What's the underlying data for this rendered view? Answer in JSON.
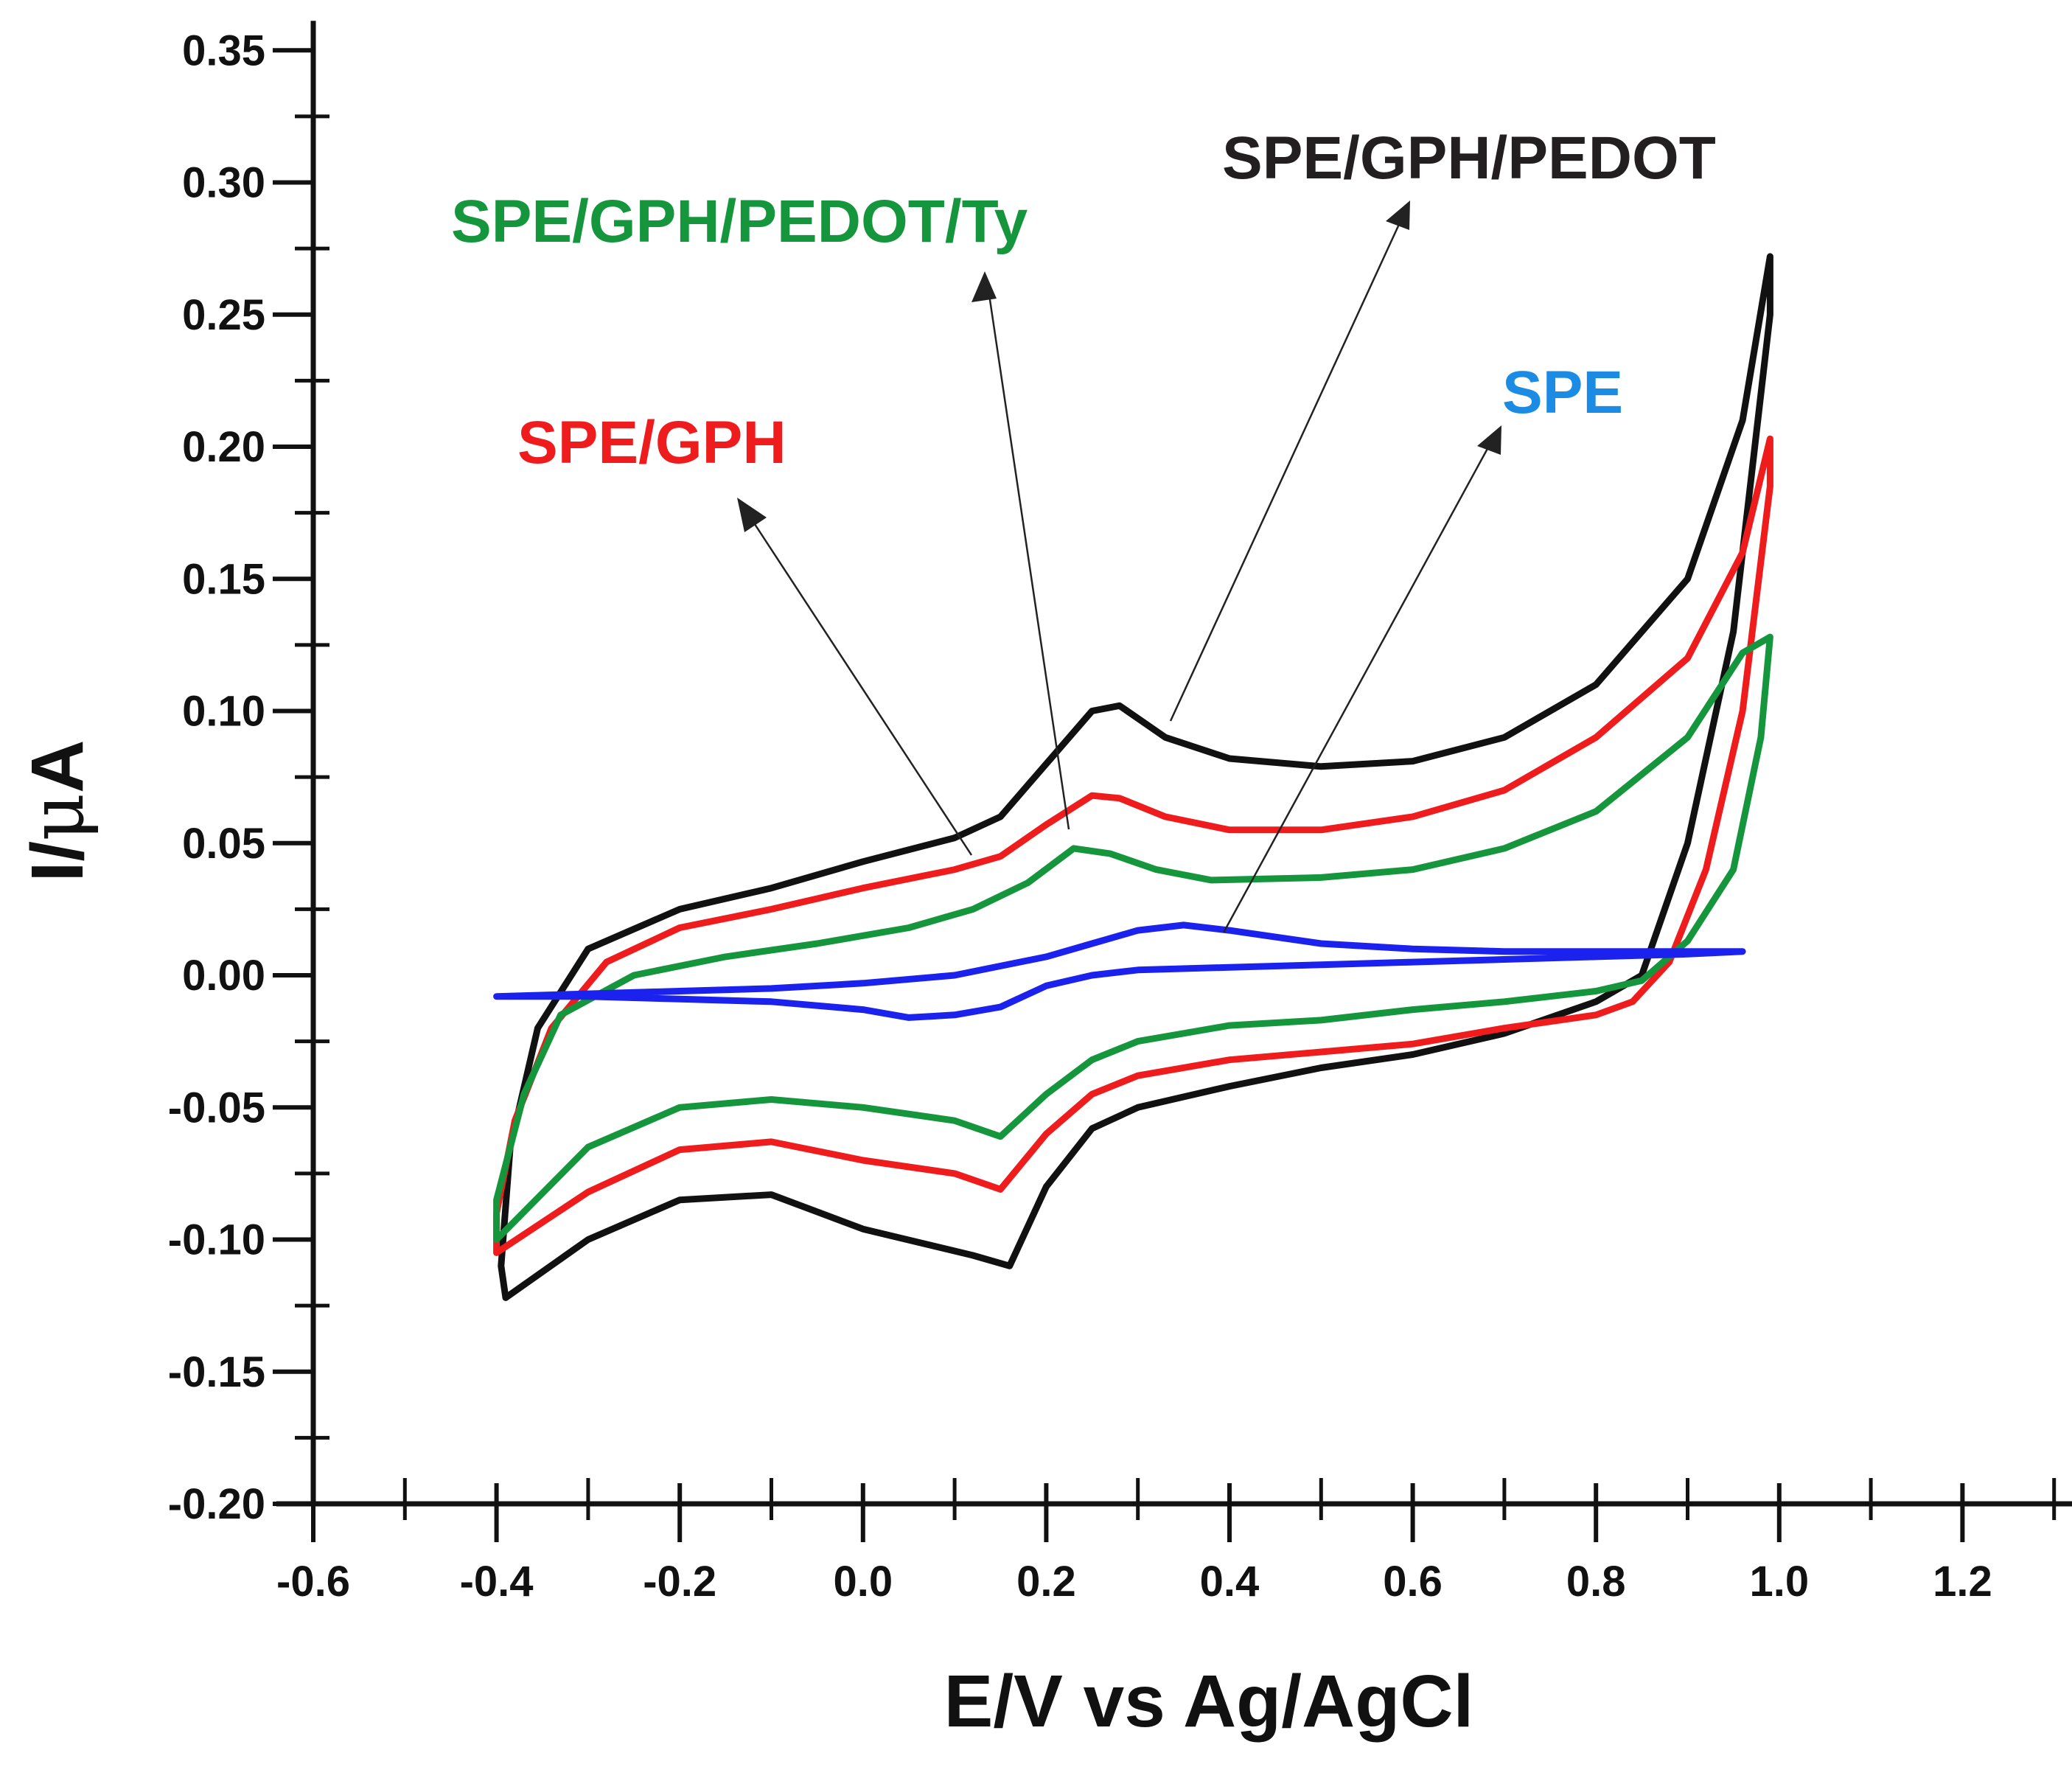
{
  "chart_data": {
    "type": "line",
    "title": "",
    "xlabel": "E/V vs Ag/AgCl",
    "ylabel_main": "I/",
    "ylabel_greek": "μ",
    "ylabel_unit": "A",
    "xlim": [
      -0.6,
      1.3
    ],
    "ylim": [
      -0.2,
      0.35
    ],
    "xticks": [
      "-0.6",
      "-0.4",
      "-0.2",
      "0.0",
      "0.2",
      "0.4",
      "0.6",
      "0.8",
      "1.0",
      "1.2"
    ],
    "yticks": [
      "-0.20",
      "-0.15",
      "-0.10",
      "-0.05",
      "0.00",
      "0.05",
      "0.10",
      "0.15",
      "0.20",
      "0.25",
      "0.30",
      "0.35"
    ],
    "series": [
      {
        "name": "SPE/GPH/PEDOT",
        "color": "#111111",
        "points": [
          [
            -0.39,
            -0.122
          ],
          [
            -0.395,
            -0.11
          ],
          [
            -0.385,
            -0.065
          ],
          [
            -0.355,
            -0.02
          ],
          [
            -0.3,
            0.01
          ],
          [
            -0.2,
            0.025
          ],
          [
            -0.1,
            0.033
          ],
          [
            0.0,
            0.043
          ],
          [
            0.1,
            0.052
          ],
          [
            0.15,
            0.06
          ],
          [
            0.2,
            0.08
          ],
          [
            0.25,
            0.1
          ],
          [
            0.28,
            0.102
          ],
          [
            0.33,
            0.09
          ],
          [
            0.4,
            0.082
          ],
          [
            0.5,
            0.079
          ],
          [
            0.6,
            0.081
          ],
          [
            0.7,
            0.09
          ],
          [
            0.8,
            0.11
          ],
          [
            0.9,
            0.15
          ],
          [
            0.96,
            0.21
          ],
          [
            0.99,
            0.272
          ],
          [
            0.99,
            0.25
          ],
          [
            0.95,
            0.13
          ],
          [
            0.9,
            0.05
          ],
          [
            0.85,
            0.0
          ],
          [
            0.8,
            -0.01
          ],
          [
            0.7,
            -0.022
          ],
          [
            0.6,
            -0.03
          ],
          [
            0.5,
            -0.035
          ],
          [
            0.4,
            -0.042
          ],
          [
            0.3,
            -0.05
          ],
          [
            0.25,
            -0.058
          ],
          [
            0.2,
            -0.08
          ],
          [
            0.16,
            -0.11
          ],
          [
            0.12,
            -0.106
          ],
          [
            0.0,
            -0.096
          ],
          [
            -0.1,
            -0.083
          ],
          [
            -0.2,
            -0.085
          ],
          [
            -0.3,
            -0.1
          ],
          [
            -0.39,
            -0.122
          ]
        ]
      },
      {
        "name": "SPE/GPH",
        "color": "#ee1c1c",
        "points": [
          [
            -0.4,
            -0.105
          ],
          [
            -0.4,
            -0.09
          ],
          [
            -0.38,
            -0.055
          ],
          [
            -0.34,
            -0.02
          ],
          [
            -0.28,
            0.005
          ],
          [
            -0.2,
            0.018
          ],
          [
            -0.1,
            0.025
          ],
          [
            0.0,
            0.033
          ],
          [
            0.1,
            0.04
          ],
          [
            0.15,
            0.045
          ],
          [
            0.2,
            0.057
          ],
          [
            0.25,
            0.068
          ],
          [
            0.28,
            0.067
          ],
          [
            0.33,
            0.06
          ],
          [
            0.4,
            0.055
          ],
          [
            0.5,
            0.055
          ],
          [
            0.6,
            0.06
          ],
          [
            0.7,
            0.07
          ],
          [
            0.8,
            0.09
          ],
          [
            0.9,
            0.12
          ],
          [
            0.96,
            0.16
          ],
          [
            0.99,
            0.203
          ],
          [
            0.99,
            0.185
          ],
          [
            0.96,
            0.1
          ],
          [
            0.92,
            0.04
          ],
          [
            0.88,
            0.005
          ],
          [
            0.84,
            -0.01
          ],
          [
            0.8,
            -0.015
          ],
          [
            0.7,
            -0.02
          ],
          [
            0.6,
            -0.026
          ],
          [
            0.5,
            -0.029
          ],
          [
            0.4,
            -0.032
          ],
          [
            0.3,
            -0.038
          ],
          [
            0.25,
            -0.045
          ],
          [
            0.2,
            -0.06
          ],
          [
            0.15,
            -0.081
          ],
          [
            0.1,
            -0.075
          ],
          [
            0.0,
            -0.07
          ],
          [
            -0.1,
            -0.063
          ],
          [
            -0.2,
            -0.066
          ],
          [
            -0.3,
            -0.082
          ],
          [
            -0.4,
            -0.105
          ]
        ]
      },
      {
        "name": "SPE/GPH/PEDOT/Ty",
        "color": "#15963c",
        "points": [
          [
            -0.4,
            -0.1
          ],
          [
            -0.4,
            -0.085
          ],
          [
            -0.37,
            -0.045
          ],
          [
            -0.33,
            -0.015
          ],
          [
            -0.25,
            0.0
          ],
          [
            -0.15,
            0.007
          ],
          [
            -0.05,
            0.012
          ],
          [
            0.05,
            0.018
          ],
          [
            0.12,
            0.025
          ],
          [
            0.18,
            0.035
          ],
          [
            0.23,
            0.048
          ],
          [
            0.27,
            0.046
          ],
          [
            0.32,
            0.04
          ],
          [
            0.38,
            0.036
          ],
          [
            0.5,
            0.037
          ],
          [
            0.6,
            0.04
          ],
          [
            0.7,
            0.048
          ],
          [
            0.8,
            0.062
          ],
          [
            0.9,
            0.09
          ],
          [
            0.96,
            0.122
          ],
          [
            0.99,
            0.128
          ],
          [
            0.98,
            0.09
          ],
          [
            0.95,
            0.04
          ],
          [
            0.9,
            0.013
          ],
          [
            0.85,
            -0.002
          ],
          [
            0.8,
            -0.006
          ],
          [
            0.7,
            -0.01
          ],
          [
            0.6,
            -0.013
          ],
          [
            0.5,
            -0.017
          ],
          [
            0.4,
            -0.019
          ],
          [
            0.3,
            -0.025
          ],
          [
            0.25,
            -0.032
          ],
          [
            0.2,
            -0.045
          ],
          [
            0.15,
            -0.061
          ],
          [
            0.1,
            -0.055
          ],
          [
            0.0,
            -0.05
          ],
          [
            -0.1,
            -0.047
          ],
          [
            -0.2,
            -0.05
          ],
          [
            -0.3,
            -0.065
          ],
          [
            -0.4,
            -0.1
          ]
        ]
      },
      {
        "name": "SPE",
        "color": "#1c22ee",
        "points": [
          [
            -0.4,
            -0.008
          ],
          [
            -0.3,
            -0.007
          ],
          [
            -0.2,
            -0.006
          ],
          [
            -0.1,
            -0.005
          ],
          [
            0.0,
            -0.003
          ],
          [
            0.1,
            0.0
          ],
          [
            0.2,
            0.007
          ],
          [
            0.25,
            0.012
          ],
          [
            0.3,
            0.017
          ],
          [
            0.35,
            0.019
          ],
          [
            0.4,
            0.017
          ],
          [
            0.5,
            0.012
          ],
          [
            0.6,
            0.01
          ],
          [
            0.7,
            0.009
          ],
          [
            0.8,
            0.009
          ],
          [
            0.9,
            0.009
          ],
          [
            0.96,
            0.009
          ],
          [
            0.9,
            0.008
          ],
          [
            0.8,
            0.007
          ],
          [
            0.7,
            0.006
          ],
          [
            0.6,
            0.005
          ],
          [
            0.5,
            0.004
          ],
          [
            0.4,
            0.003
          ],
          [
            0.3,
            0.002
          ],
          [
            0.25,
            0.0
          ],
          [
            0.2,
            -0.004
          ],
          [
            0.15,
            -0.012
          ],
          [
            0.1,
            -0.015
          ],
          [
            0.05,
            -0.016
          ],
          [
            0.0,
            -0.013
          ],
          [
            -0.1,
            -0.01
          ],
          [
            -0.2,
            -0.009
          ],
          [
            -0.3,
            -0.008
          ],
          [
            -0.4,
            -0.008
          ]
        ]
      }
    ],
    "annotations": [
      {
        "text": "SPE/GPH/PEDOT",
        "color": "#231f20"
      },
      {
        "text": "SPE/GPH/PEDOT/Ty",
        "color": "#15963c"
      },
      {
        "text": "SPE/GPH",
        "color": "#ee1c1c"
      },
      {
        "text": "SPE",
        "color": "#1c8be3"
      }
    ]
  }
}
